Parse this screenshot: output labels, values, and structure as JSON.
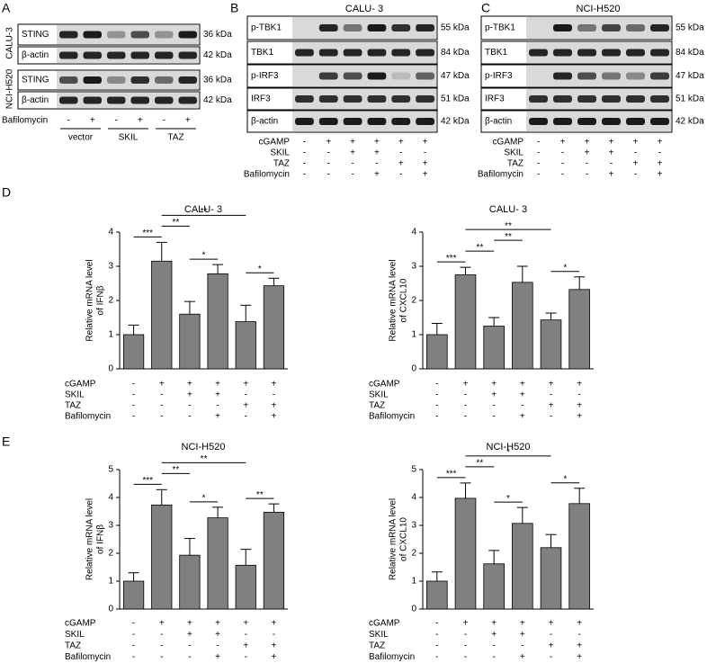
{
  "panel_a": {
    "letter": "A",
    "cell_lines": [
      "CALU-3",
      "NCI-H520"
    ],
    "rows": [
      {
        "protein": "STING",
        "size": "36 kDa"
      },
      {
        "protein": "β-actin",
        "size": "42 kDa"
      },
      {
        "protein": "STING",
        "size": "36 kDa"
      },
      {
        "protein": "β-actin",
        "size": "42 kDa"
      }
    ],
    "treatment": "Bafilomycin",
    "signs": [
      "-",
      "+",
      "-",
      "+",
      "-",
      "+"
    ],
    "groups": [
      "vector",
      "SKIL",
      "TAZ"
    ]
  },
  "panel_b": {
    "letter": "B",
    "title": "CALU- 3",
    "rows": [
      {
        "protein": "p-TBK1",
        "size": "55 kDa"
      },
      {
        "protein": "TBK1",
        "size": "84 kDa"
      },
      {
        "protein": "p-IRF3",
        "size": "47 kDa"
      },
      {
        "protein": "IRF3",
        "size": "51 kDa"
      },
      {
        "protein": "β-actin",
        "size": "42 kDa"
      }
    ],
    "conditions": [
      {
        "name": "cGAMP",
        "signs": [
          "-",
          "+",
          "+",
          "+",
          "+",
          "+"
        ]
      },
      {
        "name": "SKIL",
        "signs": [
          "-",
          "-",
          "+",
          "+",
          "-",
          "-"
        ]
      },
      {
        "name": "TAZ",
        "signs": [
          "-",
          "-",
          "-",
          "-",
          "+",
          "+"
        ]
      },
      {
        "name": "Bafilomycin",
        "signs": [
          "-",
          "-",
          "-",
          "+",
          "-",
          "+"
        ]
      }
    ]
  },
  "panel_c": {
    "letter": "C",
    "title": "NCI-H520",
    "rows": [
      {
        "protein": "p-TBK1",
        "size": "55 kDa"
      },
      {
        "protein": "TBK1",
        "size": "84 kDa"
      },
      {
        "protein": "p-IRF3",
        "size": "47 kDa"
      },
      {
        "protein": "IRF3",
        "size": "51 kDa"
      },
      {
        "protein": "β-actin",
        "size": "42 kDa"
      }
    ],
    "conditions": [
      {
        "name": "cGAMP",
        "signs": [
          "-",
          "+",
          "+",
          "+",
          "+",
          "+"
        ]
      },
      {
        "name": "SKIL",
        "signs": [
          "-",
          "-",
          "+",
          "+",
          "-",
          "-"
        ]
      },
      {
        "name": "TAZ",
        "signs": [
          "-",
          "-",
          "-",
          "-",
          "+",
          "+"
        ]
      },
      {
        "name": "Bafilomycin",
        "signs": [
          "-",
          "-",
          "-",
          "+",
          "-",
          "+"
        ]
      }
    ]
  },
  "panel_d": {
    "letter": "D"
  },
  "panel_e": {
    "letter": "E"
  },
  "chart_data": [
    {
      "type": "bar",
      "title": "CALU- 3",
      "ylabel": [
        "Relative mRNA level",
        "of IFNβ"
      ],
      "color": "#808080",
      "values": [
        1.0,
        3.15,
        1.6,
        2.78,
        1.38,
        2.43
      ],
      "errors": [
        0.28,
        0.55,
        0.37,
        0.27,
        0.48,
        0.22
      ],
      "ylim": [
        0,
        4
      ],
      "yticks": [
        0,
        1,
        2,
        3,
        4
      ],
      "annotations": [
        {
          "text": "***",
          "from": 0,
          "to": 1
        },
        {
          "text": "**",
          "from": 1,
          "to": 2
        },
        {
          "text": "*",
          "from": 2,
          "to": 3
        },
        {
          "text": "*",
          "from": 4,
          "to": 5
        },
        {
          "text": "**",
          "from": 1,
          "to": 4
        }
      ],
      "conditions": [
        {
          "name": "cGAMP",
          "signs": [
            "-",
            "+",
            "+",
            "+",
            "+",
            "+"
          ]
        },
        {
          "name": "SKIL",
          "signs": [
            "-",
            "-",
            "+",
            "+",
            "-",
            "-"
          ]
        },
        {
          "name": "TAZ",
          "signs": [
            "-",
            "-",
            "-",
            "-",
            "+",
            "+"
          ]
        },
        {
          "name": "Bafilomycin",
          "signs": [
            "-",
            "-",
            "-",
            "+",
            "-",
            "+"
          ]
        }
      ]
    },
    {
      "type": "bar",
      "title": "CALU- 3",
      "ylabel": [
        "Relative mRNA level",
        "of CXCL10"
      ],
      "color": "#808080",
      "values": [
        1.0,
        2.75,
        1.25,
        2.53,
        1.43,
        2.32
      ],
      "errors": [
        0.33,
        0.22,
        0.25,
        0.47,
        0.2,
        0.37
      ],
      "ylim": [
        0,
        4
      ],
      "yticks": [
        0,
        1,
        2,
        3,
        4
      ],
      "annotations": [
        {
          "text": "***",
          "from": 0,
          "to": 1
        },
        {
          "text": "**",
          "from": 1,
          "to": 2
        },
        {
          "text": "**",
          "from": 2,
          "to": 3
        },
        {
          "text": "*",
          "from": 4,
          "to": 5
        },
        {
          "text": "**",
          "from": 1,
          "to": 4
        }
      ],
      "conditions": [
        {
          "name": "cGAMP",
          "signs": [
            "-",
            "+",
            "+",
            "+",
            "+",
            "+"
          ]
        },
        {
          "name": "SKIL",
          "signs": [
            "-",
            "-",
            "+",
            "+",
            "-",
            "-"
          ]
        },
        {
          "name": "TAZ",
          "signs": [
            "-",
            "-",
            "-",
            "-",
            "+",
            "+"
          ]
        },
        {
          "name": "Bafilomycin",
          "signs": [
            "-",
            "-",
            "-",
            "+",
            "-",
            "+"
          ]
        }
      ]
    },
    {
      "type": "bar",
      "title": "NCI-H520",
      "ylabel": [
        "Relative mRNA level",
        "of IFNβ"
      ],
      "color": "#808080",
      "values": [
        1.0,
        3.73,
        1.93,
        3.27,
        1.57,
        3.47
      ],
      "errors": [
        0.3,
        0.55,
        0.6,
        0.38,
        0.57,
        0.3
      ],
      "ylim": [
        0,
        5
      ],
      "yticks": [
        0,
        1,
        2,
        3,
        4,
        5
      ],
      "annotations": [
        {
          "text": "***",
          "from": 0,
          "to": 1
        },
        {
          "text": "**",
          "from": 1,
          "to": 2
        },
        {
          "text": "*",
          "from": 2,
          "to": 3
        },
        {
          "text": "**",
          "from": 4,
          "to": 5
        },
        {
          "text": "**",
          "from": 1,
          "to": 4
        }
      ],
      "conditions": [
        {
          "name": "cGAMP",
          "signs": [
            "-",
            "+",
            "+",
            "+",
            "+",
            "+"
          ]
        },
        {
          "name": "SKIL",
          "signs": [
            "-",
            "-",
            "+",
            "+",
            "-",
            "-"
          ]
        },
        {
          "name": "TAZ",
          "signs": [
            "-",
            "-",
            "-",
            "-",
            "+",
            "+"
          ]
        },
        {
          "name": "Bafilomycin",
          "signs": [
            "-",
            "-",
            "-",
            "+",
            "-",
            "+"
          ]
        }
      ]
    },
    {
      "type": "bar",
      "title": "NCI-H520",
      "ylabel": [
        "Relative mRNA level",
        "of CXCL10"
      ],
      "color": "#808080",
      "values": [
        1.0,
        3.97,
        1.62,
        3.07,
        2.2,
        3.78
      ],
      "errors": [
        0.33,
        0.55,
        0.48,
        0.57,
        0.47,
        0.55
      ],
      "ylim": [
        0,
        5
      ],
      "yticks": [
        0,
        1,
        2,
        3,
        4,
        5
      ],
      "annotations": [
        {
          "text": "***",
          "from": 0,
          "to": 1
        },
        {
          "text": "**",
          "from": 1,
          "to": 2
        },
        {
          "text": "*",
          "from": 2,
          "to": 3
        },
        {
          "text": "*",
          "from": 4,
          "to": 5
        },
        {
          "text": "*",
          "from": 1,
          "to": 4
        }
      ],
      "conditions": [
        {
          "name": "cGAMP",
          "signs": [
            "-",
            "+",
            "+",
            "+",
            "+",
            "+"
          ]
        },
        {
          "name": "SKIL",
          "signs": [
            "-",
            "-",
            "+",
            "+",
            "-",
            "-"
          ]
        },
        {
          "name": "TAZ",
          "signs": [
            "-",
            "-",
            "-",
            "-",
            "+",
            "+"
          ]
        },
        {
          "name": "Bafilomycin",
          "signs": [
            "-",
            "-",
            "-",
            "+",
            "-",
            "+"
          ]
        }
      ]
    }
  ]
}
